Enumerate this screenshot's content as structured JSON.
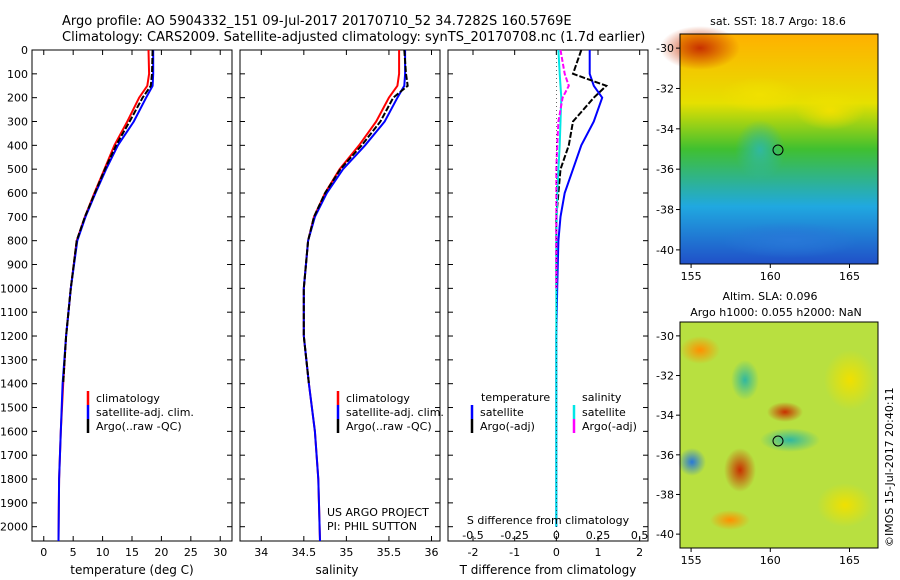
{
  "header": {
    "line1": "Argo profile: AO 5904332_151 09-Jul-2017 20170710_52 34.7282S 160.5769E",
    "line2": "Climatology: CARS2009. Satellite-adjusted climatology: synTS_20170708.nc (1.7d earlier)"
  },
  "colors": {
    "climatology": "#ff0000",
    "satellite": "#0000ff",
    "argo": "#000000",
    "satellite_salinity": "#00e6e6",
    "argo_salinity": "#ff00ff"
  },
  "depth_ticks": [
    "0",
    "100",
    "200",
    "300",
    "400",
    "500",
    "600",
    "700",
    "800",
    "900",
    "1000",
    "1100",
    "1200",
    "1300",
    "1400",
    "1500",
    "1600",
    "1700",
    "1800",
    "1900",
    "2000"
  ],
  "panel1": {
    "xlabel": "temperature (deg C)",
    "xticks": [
      "0",
      "5",
      "10",
      "15",
      "20",
      "25",
      "30"
    ],
    "legend": [
      "climatology",
      "satellite-adj. clim.",
      "Argo(..raw -QC)"
    ]
  },
  "panel2": {
    "xlabel": "salinity",
    "xticks": [
      "34",
      "34.5",
      "35",
      "35.5",
      "36"
    ],
    "legend": [
      "climatology",
      "satellite-adj. clim.",
      "Argo(..raw -QC)"
    ],
    "credit1": "US ARGO PROJECT",
    "credit2": "PI: PHIL SUTTON"
  },
  "panel3": {
    "xlabel": "T difference from climatology",
    "xticks": [
      "-2",
      "-1",
      "0",
      "1",
      "2"
    ],
    "top_label": "S difference from climatology",
    "sticks": [
      "-0.5",
      "-0.25",
      "0",
      "0.25",
      "0.5"
    ],
    "legend_t_head": "temperature",
    "legend_s_head": "salinity",
    "legend_t": [
      "satellite",
      "Argo(-adj)"
    ],
    "legend_s": [
      "satellite",
      "Argo(-adj)"
    ]
  },
  "map1": {
    "title": "sat. SST: 18.7 Argo: 18.6",
    "yticks": [
      "-30",
      "-32",
      "-34",
      "-36",
      "-38",
      "-40"
    ],
    "xticks": [
      "155",
      "160",
      "165"
    ]
  },
  "map2": {
    "title1": "Altim. SLA: 0.096",
    "title2": "Argo h1000: 0.055 h2000: NaN",
    "yticks": [
      "-30",
      "-32",
      "-34",
      "-36",
      "-38",
      "-40"
    ],
    "xticks": [
      "155",
      "160",
      "165"
    ]
  },
  "imos_stamp": "©IMOS 15-Jul-2017 20:40:11",
  "chart_data": [
    {
      "type": "line",
      "title": "",
      "xlabel": "temperature (deg C)",
      "ylabel": "",
      "xlim": [
        -2,
        32
      ],
      "ylim": [
        2060,
        0
      ],
      "series": [
        {
          "name": "climatology",
          "x": [
            17.8,
            17.9,
            17.6,
            16.2,
            14.2,
            12.0,
            10.3,
            8.6,
            7.0,
            5.6,
            4.6,
            3.8,
            3.3,
            2.9,
            2.6,
            2.5
          ],
          "y": [
            0,
            100,
            150,
            200,
            300,
            400,
            500,
            600,
            700,
            800,
            1000,
            1200,
            1400,
            1600,
            1800,
            2060
          ]
        },
        {
          "name": "satellite-adj. clim.",
          "x": [
            18.6,
            18.6,
            18.5,
            17.4,
            15.3,
            12.6,
            10.6,
            8.8,
            7.1,
            5.7,
            4.6,
            3.8,
            3.2,
            2.9,
            2.6,
            2.5
          ],
          "y": [
            0,
            100,
            150,
            200,
            300,
            400,
            500,
            600,
            700,
            800,
            1000,
            1200,
            1400,
            1600,
            1800,
            2060
          ]
        },
        {
          "name": "Argo(..raw -QC)",
          "x": [
            18.5,
            18.4,
            18.2,
            16.8,
            14.6,
            12.3,
            10.4,
            8.7,
            7.0,
            5.6,
            4.6,
            3.8,
            3.3
          ],
          "y": [
            0,
            100,
            150,
            200,
            300,
            400,
            500,
            600,
            700,
            800,
            1000,
            1200,
            1400
          ]
        }
      ]
    },
    {
      "type": "line",
      "title": "",
      "xlabel": "salinity",
      "ylabel": "",
      "xlim": [
        33.75,
        36.1
      ],
      "ylim": [
        2060,
        0
      ],
      "series": [
        {
          "name": "climatology",
          "x": [
            35.62,
            35.62,
            35.6,
            35.5,
            35.35,
            35.15,
            34.92,
            34.75,
            34.62,
            34.55,
            34.5,
            34.5,
            34.56,
            34.63,
            34.67,
            34.69
          ],
          "y": [
            0,
            100,
            150,
            200,
            300,
            400,
            500,
            600,
            700,
            800,
            1000,
            1200,
            1400,
            1600,
            1800,
            2060
          ]
        },
        {
          "name": "satellite-adj. clim.",
          "x": [
            35.69,
            35.69,
            35.68,
            35.6,
            35.45,
            35.22,
            34.96,
            34.77,
            34.63,
            34.55,
            34.5,
            34.5,
            34.56,
            34.63,
            34.67,
            34.69
          ],
          "y": [
            0,
            100,
            150,
            200,
            300,
            400,
            500,
            600,
            700,
            800,
            1000,
            1200,
            1400,
            1600,
            1800,
            2060
          ]
        },
        {
          "name": "Argo(..raw -QC)",
          "x": [
            35.68,
            35.7,
            35.72,
            35.55,
            35.4,
            35.18,
            34.93,
            34.75,
            34.62,
            34.55,
            34.5,
            34.5,
            34.56
          ],
          "y": [
            0,
            100,
            150,
            200,
            300,
            400,
            500,
            600,
            700,
            800,
            1000,
            1200,
            1400
          ]
        }
      ]
    },
    {
      "type": "line",
      "title": "",
      "xlabel": "T difference from climatology",
      "ylabel": "",
      "xlim": [
        -2.6,
        2.2
      ],
      "ylim": [
        2060,
        0
      ],
      "series": [
        {
          "name": "temperature satellite",
          "x": [
            0.8,
            0.8,
            0.9,
            1.1,
            0.9,
            0.6,
            0.4,
            0.2,
            0.1,
            0.05,
            0.02,
            0.0,
            0.0
          ],
          "y": [
            0,
            100,
            150,
            200,
            300,
            400,
            500,
            600,
            700,
            800,
            1000,
            1200,
            2000
          ]
        },
        {
          "name": "temperature Argo(-adj)",
          "x": [
            0.6,
            0.4,
            1.2,
            0.9,
            0.4,
            0.3,
            0.1,
            0.05,
            0.0,
            0.0,
            0.0
          ],
          "y": [
            0,
            100,
            150,
            200,
            300,
            400,
            500,
            600,
            700,
            800,
            1000
          ]
        },
        {
          "name": "salinity satellite",
          "x": [
            0.05,
            0.08,
            0.1,
            0.12,
            0.1,
            0.08,
            0.05,
            0.02,
            0.0,
            0.0,
            0.0
          ],
          "y": [
            0,
            100,
            150,
            200,
            300,
            400,
            500,
            600,
            800,
            1000,
            2000
          ]
        },
        {
          "name": "salinity Argo(-adj)",
          "x": [
            0.1,
            0.2,
            0.3,
            0.15,
            0.05,
            0.02,
            0.0,
            0.0,
            0.0,
            0.0,
            0.0
          ],
          "y": [
            0,
            100,
            150,
            200,
            300,
            400,
            500,
            600,
            700,
            800,
            1000
          ]
        }
      ]
    }
  ]
}
